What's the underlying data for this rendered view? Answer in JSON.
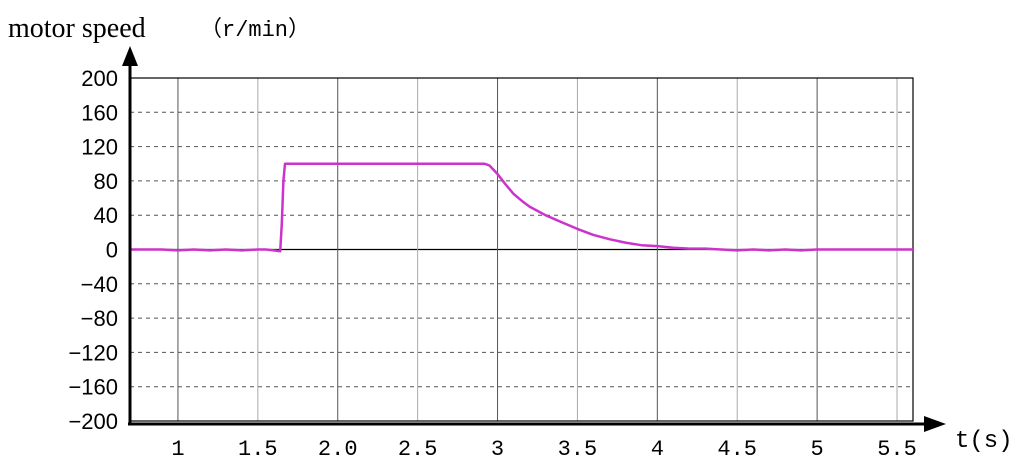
{
  "chart_data": {
    "type": "line",
    "title": "motor speed",
    "ylabel_unit": "（r/min）",
    "xlabel": "t(s)",
    "xlim": [
      0.7,
      5.6
    ],
    "ylim": [
      -200,
      200
    ],
    "x_ticks": [
      1,
      1.5,
      2.0,
      2.5,
      3,
      3.5,
      4,
      4.5,
      5,
      5.5
    ],
    "x_tick_labels": [
      "1",
      "1.5",
      "2.0",
      "2.5",
      "3",
      "3.5",
      "4",
      "4.5",
      "5",
      "5.5"
    ],
    "y_ticks": [
      200,
      160,
      120,
      80,
      40,
      0,
      -40,
      -80,
      -120,
      -160,
      -200
    ],
    "y_tick_labels": [
      "200",
      "160",
      "120",
      "80",
      "40",
      "0",
      "−40",
      "−80",
      "−120",
      "−160",
      "−200"
    ],
    "grid": true,
    "line_color": "#cc33cc",
    "series": [
      {
        "x": [
          0.7,
          0.9,
          1.0,
          1.1,
          1.2,
          1.3,
          1.4,
          1.5,
          1.55,
          1.6,
          1.64,
          1.65,
          1.66,
          1.67,
          1.68,
          1.8,
          2.0,
          2.2,
          2.4,
          2.6,
          2.8,
          2.92,
          2.95,
          3.0,
          3.05,
          3.1,
          3.15,
          3.2,
          3.3,
          3.4,
          3.5,
          3.6,
          3.7,
          3.8,
          3.9,
          4.0,
          4.1,
          4.2,
          4.3,
          4.4,
          4.5,
          4.6,
          4.7,
          4.8,
          4.9,
          5.0,
          5.2,
          5.4,
          5.6
        ],
        "y": [
          0,
          0,
          -1,
          0,
          -1,
          0,
          -1,
          0,
          0,
          -1,
          -2,
          30,
          80,
          100,
          100,
          100,
          100,
          100,
          100,
          100,
          100,
          100,
          98,
          88,
          76,
          65,
          57,
          50,
          40,
          32,
          24,
          17,
          12,
          8,
          5,
          4,
          2,
          1,
          1,
          0,
          -1,
          0,
          -1,
          0,
          -1,
          0,
          0,
          0,
          0
        ]
      }
    ]
  }
}
